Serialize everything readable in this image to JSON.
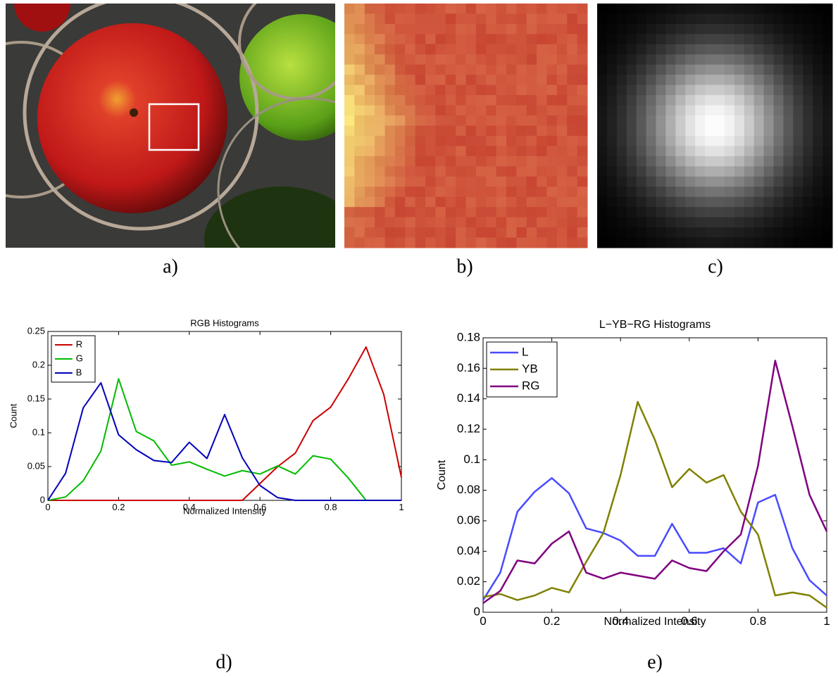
{
  "captions": [
    "a)",
    "b)",
    "c)",
    "d)",
    "e)"
  ],
  "chart_data": [
    {
      "type": "line",
      "title": "RGB Histograms",
      "xlabel": "Normalized Intensity",
      "ylabel": "Count",
      "x": [
        0,
        0.05,
        0.1,
        0.15,
        0.2,
        0.25,
        0.3,
        0.35,
        0.4,
        0.45,
        0.5,
        0.55,
        0.6,
        0.65,
        0.7,
        0.75,
        0.8,
        0.85,
        0.9,
        0.95,
        1
      ],
      "series": [
        {
          "name": "R",
          "color": "#cc0000",
          "values": [
            0,
            0,
            0,
            0,
            0,
            0,
            0,
            0,
            0,
            0,
            0,
            0,
            0.025,
            0.05,
            0.07,
            0.118,
            0.138,
            0.18,
            0.227,
            0.157,
            0.034
          ]
        },
        {
          "name": "G",
          "color": "#00bb00",
          "values": [
            0,
            0.005,
            0.029,
            0.073,
            0.18,
            0.102,
            0.088,
            0.052,
            0.057,
            0.046,
            0.036,
            0.044,
            0.039,
            0.051,
            0.039,
            0.066,
            0.061,
            0.033,
            0,
            0,
            0
          ]
        },
        {
          "name": "B",
          "color": "#0000bb",
          "values": [
            0,
            0.04,
            0.137,
            0.174,
            0.097,
            0.075,
            0.059,
            0.056,
            0.086,
            0.062,
            0.127,
            0.063,
            0.022,
            0.004,
            0,
            0,
            0,
            0,
            0,
            0,
            0
          ]
        }
      ],
      "xlim": [
        0,
        1
      ],
      "xticks": [
        0,
        0.2,
        0.4,
        0.6,
        0.8,
        1
      ],
      "ylim": [
        0,
        0.25
      ],
      "yticks": [
        0,
        0.05,
        0.1,
        0.15,
        0.2,
        0.25
      ],
      "grid": false,
      "legend": "upper left"
    },
    {
      "type": "line",
      "title": "L−YB−RG Histograms",
      "xlabel": "Normalized Intensity",
      "ylabel": "Count",
      "x": [
        0,
        0.05,
        0.1,
        0.15,
        0.2,
        0.25,
        0.3,
        0.35,
        0.4,
        0.45,
        0.5,
        0.55,
        0.6,
        0.65,
        0.7,
        0.75,
        0.8,
        0.85,
        0.9,
        0.95,
        1
      ],
      "series": [
        {
          "name": "L",
          "color": "#4a4aff",
          "values": [
            0.008,
            0.026,
            0.066,
            0.079,
            0.088,
            0.078,
            0.055,
            0.052,
            0.047,
            0.037,
            0.037,
            0.058,
            0.039,
            0.039,
            0.042,
            0.032,
            0.072,
            0.077,
            0.042,
            0.021,
            0.011
          ]
        },
        {
          "name": "YB",
          "color": "#808000",
          "values": [
            0.01,
            0.012,
            0.008,
            0.011,
            0.016,
            0.013,
            0.033,
            0.052,
            0.09,
            0.138,
            0.113,
            0.082,
            0.094,
            0.085,
            0.09,
            0.066,
            0.051,
            0.011,
            0.013,
            0.011,
            0.003
          ]
        },
        {
          "name": "RG",
          "color": "#800080",
          "values": [
            0.006,
            0.014,
            0.034,
            0.032,
            0.045,
            0.053,
            0.026,
            0.022,
            0.026,
            0.024,
            0.022,
            0.034,
            0.029,
            0.027,
            0.04,
            0.051,
            0.096,
            0.165,
            0.122,
            0.077,
            0.053
          ]
        }
      ],
      "xlim": [
        0,
        1
      ],
      "xticks": [
        0,
        0.2,
        0.4,
        0.6,
        0.8,
        1
      ],
      "ylim": [
        0,
        0.18
      ],
      "yticks": [
        0,
        0.02,
        0.04,
        0.06,
        0.08,
        0.1,
        0.12,
        0.14,
        0.16,
        0.18
      ],
      "grid": false,
      "legend": "upper left"
    }
  ]
}
